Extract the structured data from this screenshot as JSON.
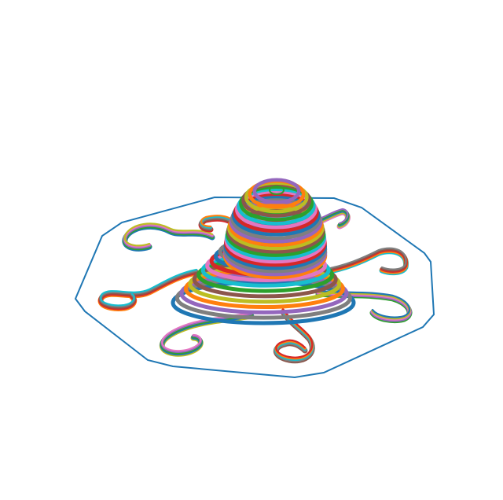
{
  "figure": {
    "kind": "3d toolpath render of an octopus figure with a skirt outline",
    "skirt_color": "#1f77b4",
    "layer_palette": [
      "#1f77b4",
      "#ff7f0e",
      "#2ca02c",
      "#d62728",
      "#9467bd",
      "#8c564b",
      "#e377c2",
      "#7f7f7f",
      "#bcbd22",
      "#17becf"
    ],
    "tentacle_count": 8,
    "head_layer_count": 22,
    "body_layer_count": 12
  }
}
